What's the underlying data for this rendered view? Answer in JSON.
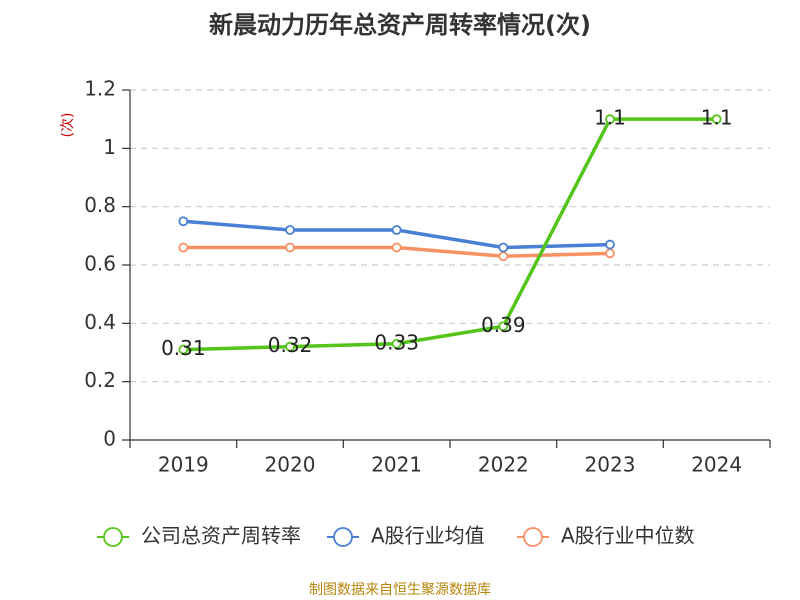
{
  "chart_data": {
    "type": "line",
    "title": "新晨动力历年总资产周转率情况(次)",
    "ylabel": "(次)",
    "xlabel": "",
    "categories": [
      "2019",
      "2020",
      "2021",
      "2022",
      "2023",
      "2024"
    ],
    "ylim": [
      0,
      1.2
    ],
    "yticks": [
      "0",
      "0.2",
      "0.4",
      "0.6",
      "0.8",
      "1",
      "1.2"
    ],
    "grid": true,
    "legend_position": "bottom",
    "series": [
      {
        "name": "公司总资产周转率",
        "color": "#52c41a",
        "values": [
          0.31,
          0.32,
          0.33,
          0.39,
          1.1,
          1.1
        ],
        "labels": [
          "0.31",
          "0.32",
          "0.33",
          "0.39",
          "1.1",
          "1.1"
        ]
      },
      {
        "name": "A股行业均值",
        "color": "#4a7fd6",
        "values": [
          0.75,
          0.72,
          0.72,
          0.66,
          0.67,
          null
        ]
      },
      {
        "name": "A股行业中位数",
        "color": "#f79163",
        "values": [
          0.66,
          0.66,
          0.66,
          0.63,
          0.64,
          null
        ]
      }
    ],
    "source": "制图数据来自恒生聚源数据库"
  }
}
